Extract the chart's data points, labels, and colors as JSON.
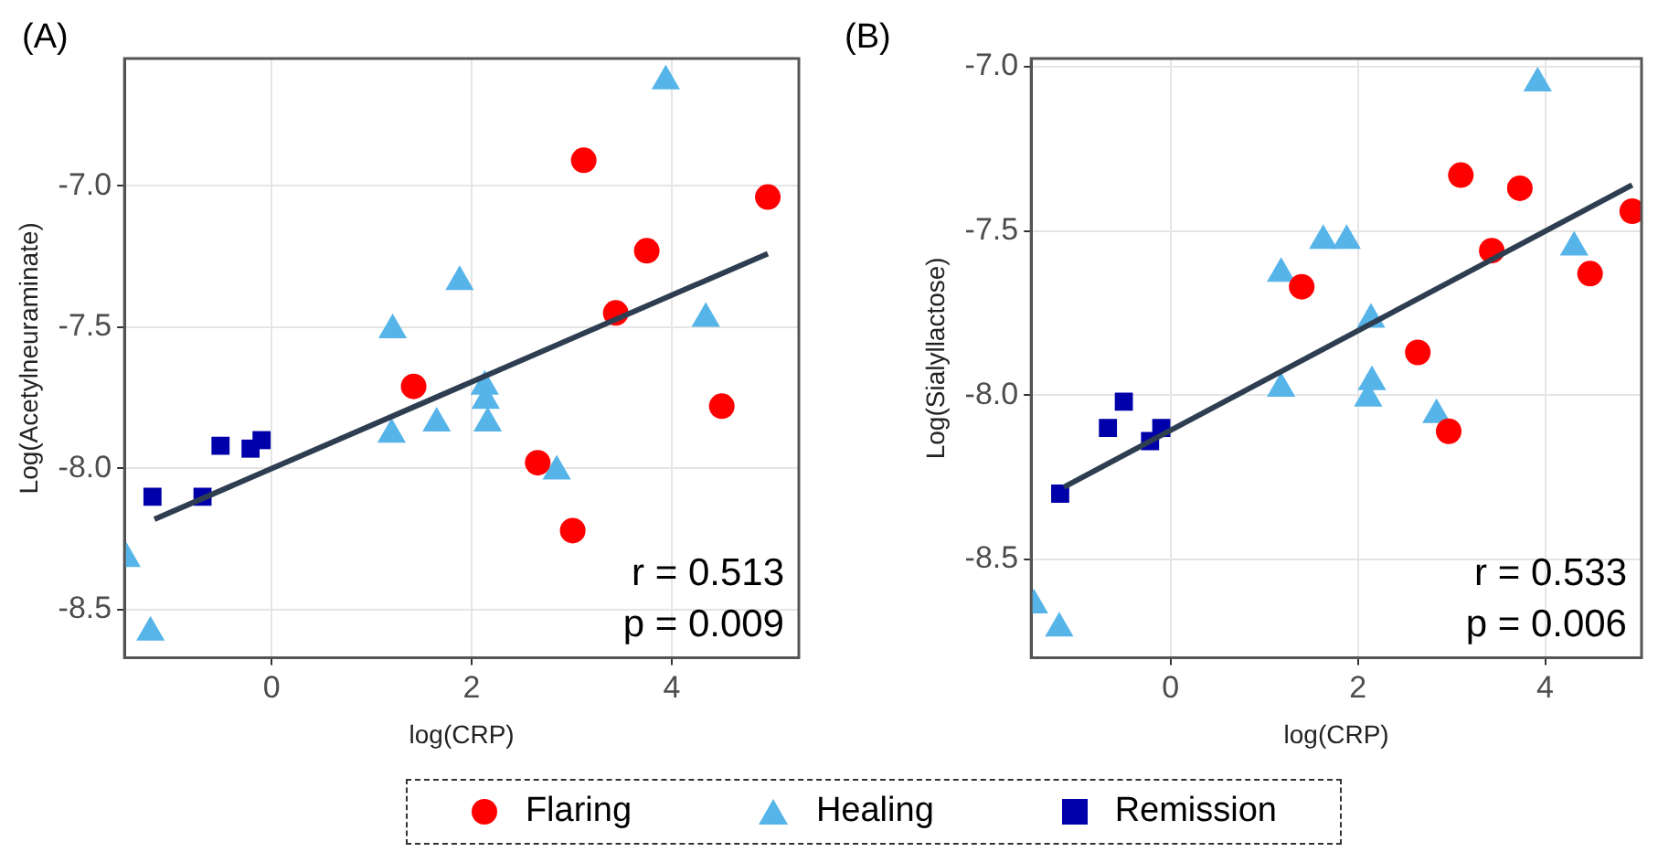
{
  "chart_data": [
    {
      "type": "scatter",
      "title": "(A)",
      "xlabel": "log(CRP)",
      "ylabel": "Log(Acetylneuraminate)",
      "xlim": [
        -1.47,
        5.27
      ],
      "xticks": [
        0,
        2,
        4
      ],
      "ylim": [
        -8.67,
        -6.55
      ],
      "yticks": [
        {
          "value": -8.5,
          "label": "-8.5"
        },
        {
          "value": -8,
          "label": "-8.0"
        },
        {
          "value": -7.5,
          "label": "-7.5"
        },
        {
          "value": -7,
          "label": "-7.0"
        }
      ],
      "grid": true,
      "legend": "bottom",
      "annotations": [
        "r = 0.513",
        "p = 0.009"
      ],
      "series": [
        {
          "name": "Flaring",
          "color": "#ff0000",
          "marker": "circle",
          "x": [
            3.12,
            4.96,
            3.75,
            3.44,
            1.42,
            2.66,
            3.01,
            4.5
          ],
          "values": [
            -6.91,
            -7.04,
            -7.23,
            -7.45,
            -7.71,
            -7.98,
            -8.22,
            -7.78
          ]
        },
        {
          "name": "Healing",
          "color": "#56b4e9",
          "marker": "triangle",
          "x": [
            3.94,
            1.88,
            1.21,
            4.34,
            2.13,
            2.14,
            1.65,
            2.16,
            1.2,
            2.85,
            -1.45,
            -1.21
          ],
          "values": [
            -6.63,
            -7.34,
            -7.51,
            -7.47,
            -7.71,
            -7.76,
            -7.84,
            -7.84,
            -7.88,
            -8.01,
            -8.32,
            -8.58
          ]
        },
        {
          "name": "Remission",
          "color": "#0000aa",
          "marker": "square",
          "x": [
            -1.19,
            -0.69,
            -0.51,
            -0.21,
            -0.1
          ],
          "values": [
            -8.1,
            -8.1,
            -7.92,
            -7.93,
            -7.9
          ]
        },
        {
          "type": "line",
          "color": "#2e3e50",
          "marker": "none",
          "line_style": "solid",
          "x": [
            -1.17,
            4.96
          ],
          "values": [
            -8.18,
            -7.24
          ]
        }
      ]
    },
    {
      "type": "scatter",
      "title": "(B)",
      "xlabel": "log(CRP)",
      "ylabel": "Log(Sialyllactose)",
      "xlim": [
        -1.49,
        5.03
      ],
      "xticks": [
        0,
        2,
        4
      ],
      "ylim": [
        -8.8,
        -6.975
      ],
      "yticks": [
        {
          "value": -8.5,
          "label": "-8.5"
        },
        {
          "value": -8,
          "label": "-8.0"
        },
        {
          "value": -7.5,
          "label": "-7.5"
        },
        {
          "value": -7,
          "label": "-7.0"
        }
      ],
      "grid": true,
      "annotations": [
        "r = 0.533",
        "p = 0.006"
      ],
      "series": [
        {
          "color": "#ff0000",
          "marker": "circle",
          "x": [
            3.1,
            3.73,
            4.93,
            3.43,
            4.48,
            1.4,
            2.64,
            2.97
          ],
          "values": [
            -7.33,
            -7.37,
            -7.44,
            -7.56,
            -7.63,
            -7.67,
            -7.87,
            -8.11
          ]
        },
        {
          "color": "#56b4e9",
          "marker": "triangle",
          "x": [
            3.92,
            1.63,
            1.88,
            1.18,
            4.31,
            2.14,
            1.18,
            2.15,
            2.11,
            2.84,
            -1.46,
            -1.19
          ],
          "values": [
            -7.05,
            -7.53,
            -7.53,
            -7.63,
            -7.55,
            -7.77,
            -7.98,
            -7.96,
            -8.01,
            -8.06,
            -8.64,
            -8.71
          ]
        },
        {
          "color": "#0000aa",
          "marker": "square",
          "x": [
            -1.18,
            -0.67,
            -0.5,
            -0.22,
            -0.1
          ],
          "values": [
            -8.3,
            -8.1,
            -8.02,
            -8.14,
            -8.1
          ]
        },
        {
          "type": "line",
          "color": "#2e3e50",
          "marker": "none",
          "line_style": "solid",
          "x": [
            -1.14,
            4.93
          ],
          "values": [
            -8.28,
            -7.36
          ]
        }
      ]
    }
  ]
}
